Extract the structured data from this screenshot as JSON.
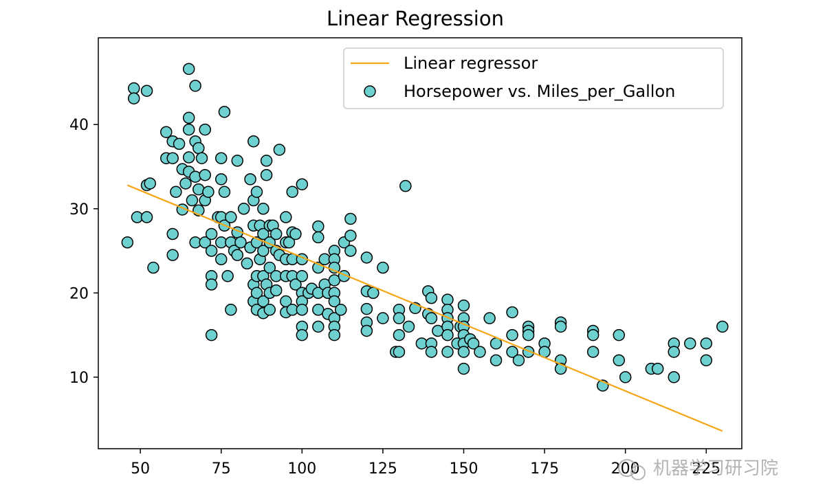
{
  "chart_data": {
    "type": "scatter",
    "title": "Linear Regression",
    "xlabel": "",
    "ylabel": "",
    "xlim": [
      37,
      236
    ],
    "ylim": [
      1.5,
      50.3
    ],
    "xticks": [
      50,
      75,
      100,
      125,
      150,
      175,
      200,
      225
    ],
    "yticks": [
      10,
      20,
      30,
      40
    ],
    "grid": false,
    "legend_position": "top-right",
    "legend": [
      "Linear regressor",
      "Horsepower vs. Miles_per_Gallon"
    ],
    "line": {
      "name": "Linear regressor",
      "x": [
        46,
        230
      ],
      "y": [
        32.8,
        3.6
      ]
    },
    "series": [
      {
        "name": "Horsepower vs. Miles_per_Gallon",
        "points": [
          [
            46,
            26
          ],
          [
            48,
            44.3
          ],
          [
            48,
            43.1
          ],
          [
            49,
            29
          ],
          [
            52,
            44
          ],
          [
            52,
            32.8
          ],
          [
            52,
            29
          ],
          [
            53,
            33
          ],
          [
            54,
            23
          ],
          [
            58,
            39.1
          ],
          [
            58,
            36
          ],
          [
            60,
            38
          ],
          [
            60,
            36
          ],
          [
            60,
            27
          ],
          [
            60,
            24.5
          ],
          [
            61,
            32
          ],
          [
            62,
            37.7
          ],
          [
            63,
            34.7
          ],
          [
            63,
            29.9
          ],
          [
            64,
            33
          ],
          [
            65,
            46.6
          ],
          [
            65,
            40.8
          ],
          [
            65,
            39.4
          ],
          [
            65,
            36.1
          ],
          [
            65,
            34.4
          ],
          [
            66,
            31
          ],
          [
            67,
            44.6
          ],
          [
            67,
            38
          ],
          [
            67,
            33.8
          ],
          [
            67,
            26
          ],
          [
            68,
            32.3
          ],
          [
            68,
            29.8
          ],
          [
            68,
            37.2
          ],
          [
            69,
            36
          ],
          [
            70,
            39.4
          ],
          [
            70,
            34
          ],
          [
            70,
            31
          ],
          [
            70,
            26
          ],
          [
            71,
            32
          ],
          [
            72,
            27
          ],
          [
            72,
            25
          ],
          [
            72,
            22
          ],
          [
            72,
            21
          ],
          [
            72,
            15
          ],
          [
            74,
            29
          ],
          [
            75,
            36
          ],
          [
            75,
            33.5
          ],
          [
            75,
            29
          ],
          [
            75,
            26
          ],
          [
            75,
            24
          ],
          [
            76,
            41.5
          ],
          [
            76,
            32
          ],
          [
            76,
            28
          ],
          [
            77,
            22
          ],
          [
            78,
            29
          ],
          [
            78,
            18
          ],
          [
            78,
            26
          ],
          [
            79,
            25
          ],
          [
            80,
            35.7
          ],
          [
            80,
            27.2
          ],
          [
            80,
            24.5
          ],
          [
            81,
            26
          ],
          [
            82,
            30
          ],
          [
            83,
            23.5
          ],
          [
            84,
            33.5
          ],
          [
            84,
            25.4
          ],
          [
            85,
            38
          ],
          [
            85,
            31
          ],
          [
            85,
            28
          ],
          [
            85,
            21
          ],
          [
            85,
            19
          ],
          [
            86,
            32
          ],
          [
            86,
            26
          ],
          [
            86,
            22
          ],
          [
            86,
            20
          ],
          [
            86,
            18
          ],
          [
            87,
            28
          ],
          [
            87,
            24
          ],
          [
            88,
            30
          ],
          [
            88,
            27
          ],
          [
            88,
            25
          ],
          [
            88,
            22
          ],
          [
            88,
            19
          ],
          [
            88,
            17.6
          ],
          [
            89,
            35.7
          ],
          [
            89,
            34
          ],
          [
            89,
            21
          ],
          [
            90,
            28
          ],
          [
            90,
            26
          ],
          [
            90,
            23
          ],
          [
            90,
            20
          ],
          [
            90,
            18
          ],
          [
            91,
            28
          ],
          [
            92,
            27
          ],
          [
            92,
            25
          ],
          [
            92,
            22
          ],
          [
            92,
            20.3
          ],
          [
            93,
            37
          ],
          [
            93,
            24.5
          ],
          [
            95,
            29
          ],
          [
            95,
            26
          ],
          [
            95,
            24
          ],
          [
            95,
            22
          ],
          [
            95,
            19
          ],
          [
            95,
            17.7
          ],
          [
            96,
            26
          ],
          [
            97,
            32
          ],
          [
            97,
            27.2
          ],
          [
            97,
            24
          ],
          [
            97,
            22
          ],
          [
            97,
            18
          ],
          [
            98,
            27
          ],
          [
            98,
            21
          ],
          [
            100,
            32.9
          ],
          [
            100,
            24
          ],
          [
            100,
            22
          ],
          [
            100,
            20
          ],
          [
            100,
            19
          ],
          [
            100,
            18
          ],
          [
            100,
            16
          ],
          [
            100,
            15
          ],
          [
            102,
            20
          ],
          [
            103,
            20.5
          ],
          [
            105,
            27.9
          ],
          [
            105,
            26.6
          ],
          [
            105,
            23
          ],
          [
            105,
            20
          ],
          [
            105,
            18
          ],
          [
            105,
            16
          ],
          [
            107,
            24
          ],
          [
            107,
            21
          ],
          [
            108,
            20
          ],
          [
            108,
            17.5
          ],
          [
            110,
            25
          ],
          [
            110,
            24
          ],
          [
            110,
            23
          ],
          [
            110,
            21.5
          ],
          [
            110,
            20
          ],
          [
            110,
            19
          ],
          [
            110,
            17
          ],
          [
            110,
            16
          ],
          [
            110,
            15
          ],
          [
            112,
            18
          ],
          [
            113,
            26
          ],
          [
            113,
            22
          ],
          [
            115,
            28.8
          ],
          [
            115,
            26.8
          ],
          [
            115,
            25
          ],
          [
            120,
            24.2
          ],
          [
            120,
            20.2
          ],
          [
            120,
            18.1
          ],
          [
            120,
            16.5
          ],
          [
            120,
            15.5
          ],
          [
            122,
            20
          ],
          [
            125,
            23
          ],
          [
            125,
            17
          ],
          [
            129,
            13
          ],
          [
            130,
            18
          ],
          [
            130,
            17
          ],
          [
            130,
            15
          ],
          [
            130,
            13
          ],
          [
            132,
            32.7
          ],
          [
            133,
            16
          ],
          [
            135,
            18.2
          ],
          [
            137,
            14
          ],
          [
            139,
            20.2
          ],
          [
            139,
            17.5
          ],
          [
            140,
            19.4
          ],
          [
            140,
            17
          ],
          [
            140,
            14
          ],
          [
            140,
            13
          ],
          [
            142,
            15.5
          ],
          [
            145,
            19.2
          ],
          [
            145,
            18
          ],
          [
            145,
            17
          ],
          [
            145,
            16
          ],
          [
            145,
            15
          ],
          [
            145,
            13
          ],
          [
            148,
            14
          ],
          [
            149,
            16
          ],
          [
            150,
            18.5
          ],
          [
            150,
            17
          ],
          [
            150,
            16
          ],
          [
            150,
            15
          ],
          [
            150,
            14
          ],
          [
            150,
            13
          ],
          [
            150,
            11
          ],
          [
            152,
            14.5
          ],
          [
            153,
            14
          ],
          [
            155,
            13
          ],
          [
            158,
            17
          ],
          [
            160,
            14
          ],
          [
            160,
            12
          ],
          [
            165,
            17.7
          ],
          [
            165,
            15
          ],
          [
            165,
            13
          ],
          [
            167,
            12
          ],
          [
            170,
            16
          ],
          [
            170,
            15.5
          ],
          [
            170,
            15
          ],
          [
            170,
            13
          ],
          [
            175,
            14
          ],
          [
            175,
            13
          ],
          [
            180,
            16.5
          ],
          [
            180,
            16
          ],
          [
            180,
            12
          ],
          [
            180,
            11
          ],
          [
            190,
            15.5
          ],
          [
            190,
            15
          ],
          [
            190,
            13
          ],
          [
            193,
            9
          ],
          [
            198,
            15
          ],
          [
            198,
            12
          ],
          [
            200,
            10
          ],
          [
            208,
            11
          ],
          [
            210,
            11
          ],
          [
            215,
            14
          ],
          [
            215,
            13
          ],
          [
            215,
            10
          ],
          [
            220,
            14
          ],
          [
            225,
            14
          ],
          [
            225,
            12
          ],
          [
            230,
            16
          ]
        ]
      }
    ]
  },
  "watermark": "机器学习研习院",
  "colors": {
    "line": "#f5a516",
    "marker_fill": "#6fd0d0",
    "marker_edge": "#000000",
    "axis": "#000000"
  }
}
